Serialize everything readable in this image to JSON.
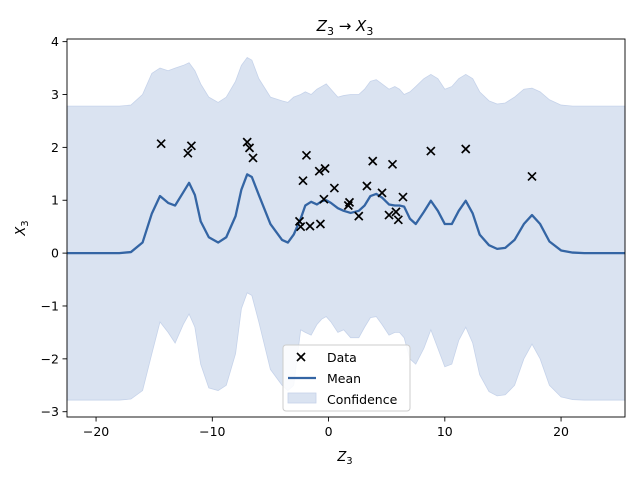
{
  "chart_data": {
    "type": "scatter",
    "title_main": "Z",
    "title_sub1": "3",
    "title_arrow": " → ",
    "title_main2": "X",
    "title_sub2": "3",
    "xlabel_main": "Z",
    "xlabel_sub": "3",
    "ylabel_main": "X",
    "ylabel_sub": "3",
    "xlim": [
      -22.5,
      25.5
    ],
    "ylim": [
      -3.1,
      4.05
    ],
    "xticks": [
      -20,
      -10,
      0,
      10,
      20
    ],
    "yticks": [
      -3,
      -2,
      -1,
      0,
      1,
      2,
      3,
      4
    ],
    "grid": false,
    "legend_position": "lower center",
    "legend": [
      "Data",
      "Mean",
      "Confidence"
    ],
    "colors": {
      "mean": "#3465a4",
      "confidence_fill": "#dae3f1",
      "confidence_edge": "#c6d3ea",
      "data": "#000000"
    },
    "series": [
      {
        "name": "Data",
        "kind": "scatter",
        "points": [
          [
            -14.4,
            2.07
          ],
          [
            -12.1,
            1.89
          ],
          [
            -11.8,
            2.03
          ],
          [
            -7.0,
            2.1
          ],
          [
            -6.8,
            1.99
          ],
          [
            -6.5,
            1.8
          ],
          [
            -2.5,
            0.6
          ],
          [
            -2.4,
            0.5
          ],
          [
            -2.2,
            1.37
          ],
          [
            -1.9,
            1.85
          ],
          [
            -1.6,
            0.51
          ],
          [
            -0.8,
            1.55
          ],
          [
            -0.7,
            0.55
          ],
          [
            -0.4,
            1.02
          ],
          [
            -0.3,
            1.6
          ],
          [
            0.5,
            1.23
          ],
          [
            1.7,
            0.9
          ],
          [
            1.8,
            0.96
          ],
          [
            2.6,
            0.7
          ],
          [
            3.3,
            1.27
          ],
          [
            3.8,
            1.74
          ],
          [
            4.6,
            1.14
          ],
          [
            5.2,
            0.72
          ],
          [
            5.5,
            1.68
          ],
          [
            5.8,
            0.78
          ],
          [
            6.0,
            0.63
          ],
          [
            6.4,
            1.06
          ],
          [
            8.8,
            1.93
          ],
          [
            11.8,
            1.97
          ],
          [
            17.5,
            1.45
          ]
        ]
      },
      {
        "name": "Mean",
        "kind": "line",
        "points": [
          [
            -22.5,
            0.0
          ],
          [
            -18.0,
            0.0
          ],
          [
            -17.0,
            0.02
          ],
          [
            -16.0,
            0.2
          ],
          [
            -15.2,
            0.75
          ],
          [
            -14.5,
            1.08
          ],
          [
            -13.8,
            0.95
          ],
          [
            -13.2,
            0.9
          ],
          [
            -12.5,
            1.15
          ],
          [
            -12.0,
            1.33
          ],
          [
            -11.5,
            1.1
          ],
          [
            -11.0,
            0.6
          ],
          [
            -10.3,
            0.3
          ],
          [
            -9.5,
            0.2
          ],
          [
            -8.8,
            0.3
          ],
          [
            -8.0,
            0.7
          ],
          [
            -7.5,
            1.2
          ],
          [
            -7.0,
            1.49
          ],
          [
            -6.6,
            1.44
          ],
          [
            -6.0,
            1.1
          ],
          [
            -5.0,
            0.55
          ],
          [
            -4.0,
            0.25
          ],
          [
            -3.5,
            0.2
          ],
          [
            -3.0,
            0.35
          ],
          [
            -2.4,
            0.65
          ],
          [
            -2.0,
            0.9
          ],
          [
            -1.5,
            0.97
          ],
          [
            -1.0,
            0.92
          ],
          [
            -0.6,
            0.98
          ],
          [
            -0.2,
            1.0
          ],
          [
            0.2,
            0.95
          ],
          [
            0.8,
            0.85
          ],
          [
            1.3,
            0.8
          ],
          [
            1.9,
            0.76
          ],
          [
            2.6,
            0.8
          ],
          [
            3.1,
            0.9
          ],
          [
            3.6,
            1.08
          ],
          [
            4.1,
            1.12
          ],
          [
            4.6,
            1.05
          ],
          [
            5.2,
            0.92
          ],
          [
            5.7,
            0.9
          ],
          [
            6.1,
            0.9
          ],
          [
            6.5,
            0.88
          ],
          [
            7.0,
            0.65
          ],
          [
            7.5,
            0.55
          ],
          [
            8.2,
            0.78
          ],
          [
            8.8,
            0.99
          ],
          [
            9.4,
            0.8
          ],
          [
            10.0,
            0.55
          ],
          [
            10.6,
            0.55
          ],
          [
            11.2,
            0.8
          ],
          [
            11.8,
            0.99
          ],
          [
            12.4,
            0.75
          ],
          [
            13.0,
            0.35
          ],
          [
            13.8,
            0.15
          ],
          [
            14.5,
            0.08
          ],
          [
            15.2,
            0.1
          ],
          [
            16.0,
            0.25
          ],
          [
            16.8,
            0.55
          ],
          [
            17.5,
            0.72
          ],
          [
            18.2,
            0.55
          ],
          [
            19.0,
            0.22
          ],
          [
            20.0,
            0.05
          ],
          [
            21.0,
            0.01
          ],
          [
            22.0,
            0.0
          ],
          [
            25.5,
            0.0
          ]
        ]
      },
      {
        "name": "Confidence",
        "kind": "band",
        "points": [
          [
            -22.5,
            -2.78,
            2.78
          ],
          [
            -18.0,
            -2.78,
            2.78
          ],
          [
            -17.0,
            -2.76,
            2.8
          ],
          [
            -16.0,
            -2.6,
            3.0
          ],
          [
            -15.2,
            -1.9,
            3.4
          ],
          [
            -14.5,
            -1.3,
            3.5
          ],
          [
            -13.8,
            -1.5,
            3.45
          ],
          [
            -13.2,
            -1.7,
            3.5
          ],
          [
            -12.5,
            -1.35,
            3.55
          ],
          [
            -12.0,
            -1.15,
            3.6
          ],
          [
            -11.5,
            -1.4,
            3.45
          ],
          [
            -11.0,
            -2.1,
            3.2
          ],
          [
            -10.3,
            -2.55,
            2.95
          ],
          [
            -9.5,
            -2.6,
            2.85
          ],
          [
            -8.8,
            -2.5,
            2.95
          ],
          [
            -8.0,
            -1.9,
            3.25
          ],
          [
            -7.5,
            -1.05,
            3.55
          ],
          [
            -7.0,
            -0.75,
            3.7
          ],
          [
            -6.6,
            -0.8,
            3.65
          ],
          [
            -6.0,
            -1.3,
            3.3
          ],
          [
            -5.0,
            -2.2,
            2.95
          ],
          [
            -4.0,
            -2.5,
            2.88
          ],
          [
            -3.5,
            -2.6,
            2.85
          ],
          [
            -3.0,
            -2.5,
            2.95
          ],
          [
            -2.4,
            -1.45,
            3.0
          ],
          [
            -2.0,
            -1.5,
            3.05
          ],
          [
            -1.5,
            -1.55,
            3.0
          ],
          [
            -1.0,
            -1.35,
            3.1
          ],
          [
            -0.6,
            -1.25,
            3.15
          ],
          [
            -0.2,
            -1.2,
            3.2
          ],
          [
            0.2,
            -1.3,
            3.1
          ],
          [
            0.8,
            -1.5,
            2.95
          ],
          [
            1.3,
            -1.45,
            2.98
          ],
          [
            1.9,
            -1.6,
            3.0
          ],
          [
            2.6,
            -1.6,
            3.0
          ],
          [
            3.1,
            -1.4,
            3.1
          ],
          [
            3.6,
            -1.22,
            3.25
          ],
          [
            4.1,
            -1.2,
            3.28
          ],
          [
            4.6,
            -1.35,
            3.2
          ],
          [
            5.2,
            -1.55,
            3.1
          ],
          [
            5.7,
            -1.5,
            3.15
          ],
          [
            6.1,
            -1.5,
            3.1
          ],
          [
            6.5,
            -1.6,
            3.0
          ],
          [
            7.0,
            -2.0,
            3.05
          ],
          [
            7.5,
            -2.1,
            3.15
          ],
          [
            8.2,
            -1.8,
            3.3
          ],
          [
            8.8,
            -1.45,
            3.38
          ],
          [
            9.4,
            -1.8,
            3.3
          ],
          [
            10.0,
            -2.15,
            3.1
          ],
          [
            10.6,
            -2.1,
            3.15
          ],
          [
            11.2,
            -1.65,
            3.3
          ],
          [
            11.8,
            -1.4,
            3.38
          ],
          [
            12.4,
            -1.7,
            3.3
          ],
          [
            13.0,
            -2.3,
            3.05
          ],
          [
            13.8,
            -2.62,
            2.88
          ],
          [
            14.5,
            -2.7,
            2.82
          ],
          [
            15.2,
            -2.68,
            2.84
          ],
          [
            16.0,
            -2.5,
            2.95
          ],
          [
            16.8,
            -2.0,
            3.1
          ],
          [
            17.5,
            -1.72,
            3.12
          ],
          [
            18.2,
            -2.0,
            3.05
          ],
          [
            19.0,
            -2.5,
            2.9
          ],
          [
            20.0,
            -2.72,
            2.8
          ],
          [
            21.0,
            -2.77,
            2.78
          ],
          [
            22.0,
            -2.78,
            2.78
          ],
          [
            25.5,
            -2.78,
            2.78
          ]
        ]
      }
    ]
  }
}
